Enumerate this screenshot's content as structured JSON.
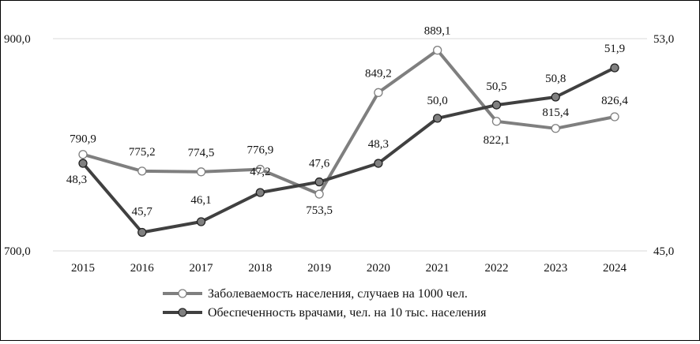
{
  "chart_data": {
    "type": "line",
    "categories": [
      "2015",
      "2016",
      "2017",
      "2018",
      "2019",
      "2020",
      "2021",
      "2022",
      "2023",
      "2024"
    ],
    "series": [
      {
        "name": "Заболеваемость населения, случаев на 1000 чел.",
        "axis": "left",
        "color": "#7f7f7f",
        "marker_fill": "#ffffff",
        "values": [
          790.9,
          775.2,
          774.5,
          776.9,
          753.5,
          849.2,
          889.1,
          822.1,
          815.4,
          826.4
        ],
        "labels": [
          "790,9",
          "775,2",
          "774,5",
          "776,9",
          "753,5",
          "849,2",
          "889,1",
          "822,1",
          "815,4",
          "826,4"
        ]
      },
      {
        "name": "Обеспеченность врачами, чел. на 10 тыс. населения",
        "axis": "right",
        "color": "#404040",
        "marker_fill": "#808080",
        "values": [
          48.3,
          45.7,
          46.1,
          47.2,
          47.6,
          48.3,
          50.0,
          50.5,
          50.8,
          51.9
        ],
        "labels": [
          "48,3",
          "45,7",
          "46,1",
          "47,2",
          "47,6",
          "48,3",
          "50,0",
          "50,5",
          "50,8",
          "51,9"
        ]
      }
    ],
    "left_axis": {
      "range": [
        700,
        900
      ],
      "tick_labels": [
        "700,0",
        "900,0"
      ]
    },
    "right_axis": {
      "range": [
        45,
        53
      ],
      "tick_labels": [
        "45,0",
        "53,0"
      ]
    },
    "grid": true,
    "legend_position": "bottom"
  }
}
